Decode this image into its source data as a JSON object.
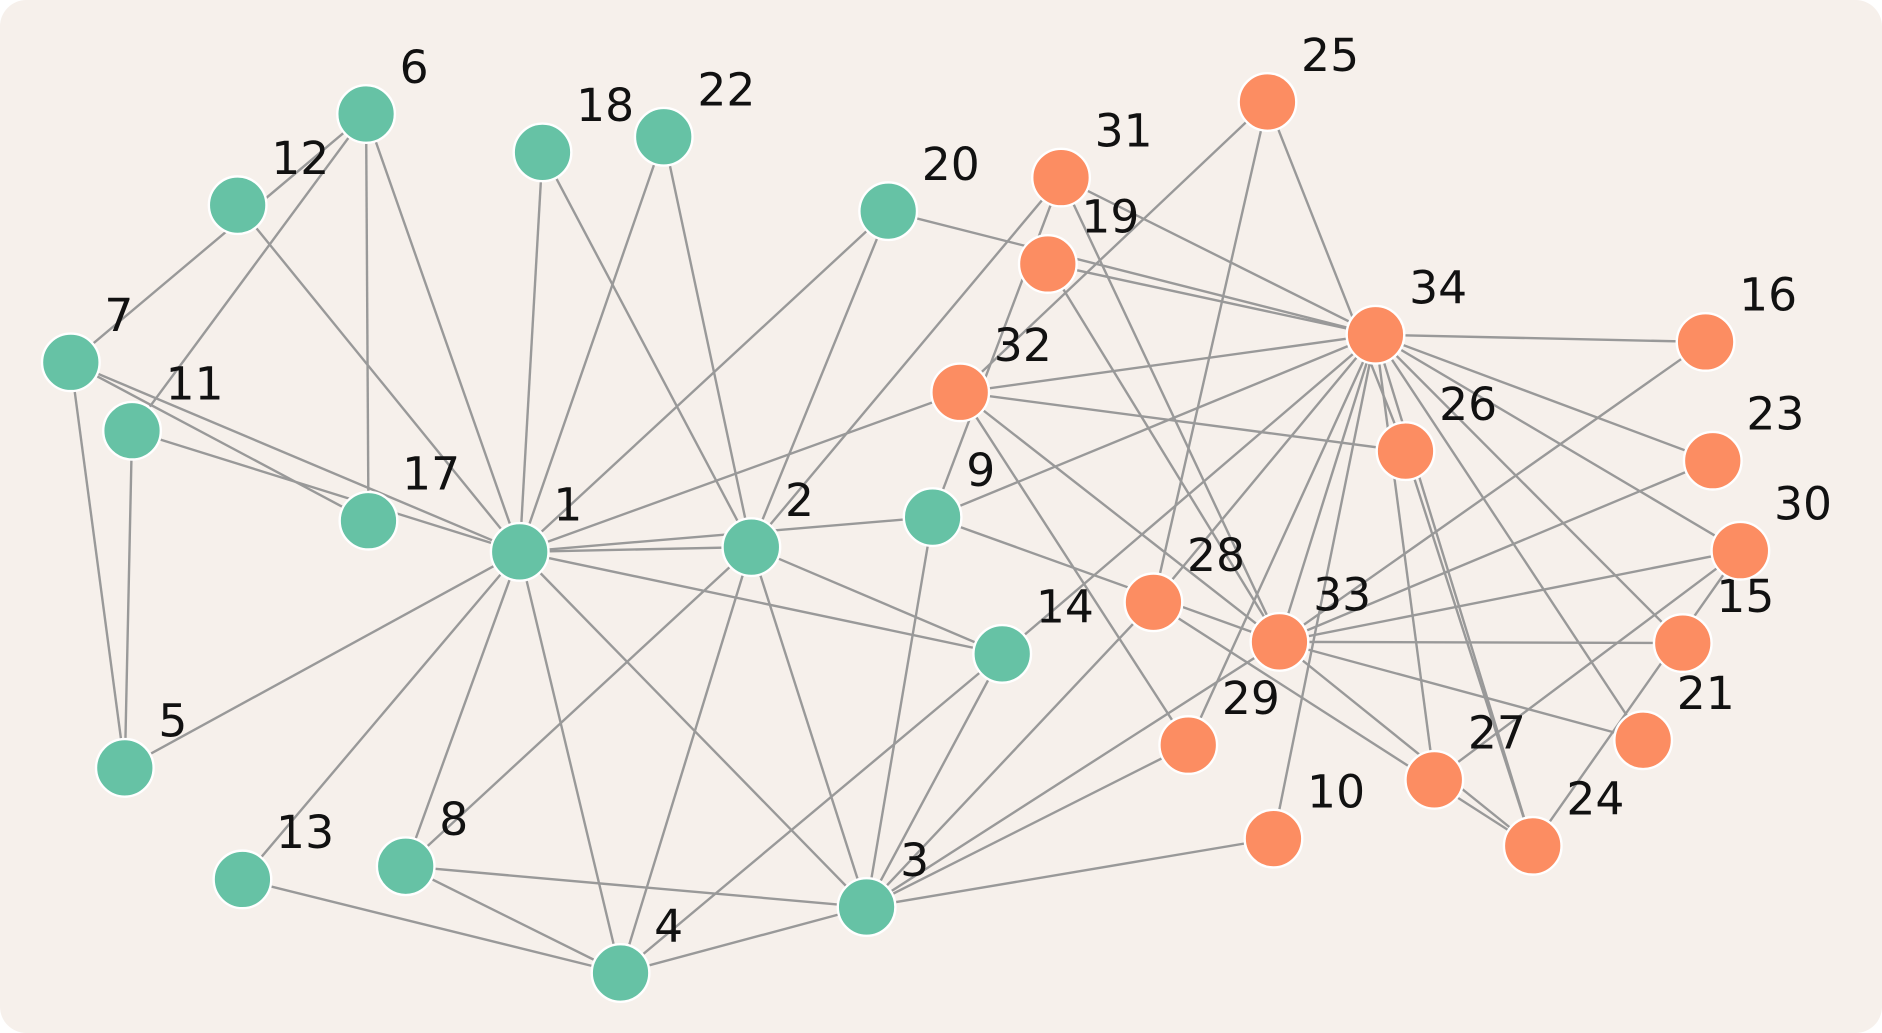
{
  "colors": {
    "background": "#f6f0eb",
    "edge": "#999999",
    "node_stroke": "#ffffff",
    "group_a": "#66c2a5",
    "group_b": "#fc8d62"
  },
  "nodes": [
    {
      "id": "1",
      "group": "a"
    },
    {
      "id": "2",
      "group": "a"
    },
    {
      "id": "3",
      "group": "a"
    },
    {
      "id": "4",
      "group": "a"
    },
    {
      "id": "5",
      "group": "a"
    },
    {
      "id": "6",
      "group": "a"
    },
    {
      "id": "7",
      "group": "a"
    },
    {
      "id": "8",
      "group": "a"
    },
    {
      "id": "9",
      "group": "a"
    },
    {
      "id": "10",
      "group": "b"
    },
    {
      "id": "11",
      "group": "a"
    },
    {
      "id": "12",
      "group": "a"
    },
    {
      "id": "13",
      "group": "a"
    },
    {
      "id": "14",
      "group": "a"
    },
    {
      "id": "15",
      "group": "b"
    },
    {
      "id": "16",
      "group": "b"
    },
    {
      "id": "17",
      "group": "a"
    },
    {
      "id": "18",
      "group": "a"
    },
    {
      "id": "19",
      "group": "b"
    },
    {
      "id": "20",
      "group": "a"
    },
    {
      "id": "21",
      "group": "b"
    },
    {
      "id": "22",
      "group": "a"
    },
    {
      "id": "23",
      "group": "b"
    },
    {
      "id": "24",
      "group": "b"
    },
    {
      "id": "25",
      "group": "b"
    },
    {
      "id": "26",
      "group": "b"
    },
    {
      "id": "27",
      "group": "b"
    },
    {
      "id": "28",
      "group": "b"
    },
    {
      "id": "29",
      "group": "b"
    },
    {
      "id": "30",
      "group": "b"
    },
    {
      "id": "31",
      "group": "b"
    },
    {
      "id": "32",
      "group": "b"
    },
    {
      "id": "33",
      "group": "b"
    },
    {
      "id": "34",
      "group": "b"
    }
  ],
  "edges": [
    [
      "1",
      "2"
    ],
    [
      "1",
      "3"
    ],
    [
      "1",
      "4"
    ],
    [
      "1",
      "5"
    ],
    [
      "1",
      "6"
    ],
    [
      "1",
      "7"
    ],
    [
      "1",
      "8"
    ],
    [
      "1",
      "9"
    ],
    [
      "1",
      "11"
    ],
    [
      "1",
      "12"
    ],
    [
      "1",
      "13"
    ],
    [
      "1",
      "14"
    ],
    [
      "1",
      "18"
    ],
    [
      "1",
      "20"
    ],
    [
      "1",
      "22"
    ],
    [
      "1",
      "32"
    ],
    [
      "2",
      "3"
    ],
    [
      "2",
      "4"
    ],
    [
      "2",
      "8"
    ],
    [
      "2",
      "14"
    ],
    [
      "2",
      "18"
    ],
    [
      "2",
      "20"
    ],
    [
      "2",
      "22"
    ],
    [
      "2",
      "31"
    ],
    [
      "3",
      "4"
    ],
    [
      "3",
      "8"
    ],
    [
      "3",
      "9"
    ],
    [
      "3",
      "10"
    ],
    [
      "3",
      "14"
    ],
    [
      "3",
      "28"
    ],
    [
      "3",
      "29"
    ],
    [
      "3",
      "33"
    ],
    [
      "4",
      "8"
    ],
    [
      "4",
      "13"
    ],
    [
      "4",
      "14"
    ],
    [
      "5",
      "7"
    ],
    [
      "5",
      "11"
    ],
    [
      "6",
      "7"
    ],
    [
      "6",
      "11"
    ],
    [
      "6",
      "17"
    ],
    [
      "7",
      "17"
    ],
    [
      "9",
      "31"
    ],
    [
      "9",
      "33"
    ],
    [
      "9",
      "34"
    ],
    [
      "10",
      "34"
    ],
    [
      "14",
      "34"
    ],
    [
      "15",
      "33"
    ],
    [
      "15",
      "34"
    ],
    [
      "16",
      "33"
    ],
    [
      "16",
      "34"
    ],
    [
      "19",
      "33"
    ],
    [
      "19",
      "34"
    ],
    [
      "20",
      "34"
    ],
    [
      "21",
      "33"
    ],
    [
      "21",
      "34"
    ],
    [
      "23",
      "33"
    ],
    [
      "23",
      "34"
    ],
    [
      "24",
      "26"
    ],
    [
      "24",
      "28"
    ],
    [
      "24",
      "30"
    ],
    [
      "24",
      "33"
    ],
    [
      "24",
      "34"
    ],
    [
      "25",
      "26"
    ],
    [
      "25",
      "28"
    ],
    [
      "25",
      "32"
    ],
    [
      "26",
      "32"
    ],
    [
      "27",
      "30"
    ],
    [
      "27",
      "34"
    ],
    [
      "28",
      "34"
    ],
    [
      "29",
      "32"
    ],
    [
      "29",
      "34"
    ],
    [
      "30",
      "33"
    ],
    [
      "30",
      "34"
    ],
    [
      "31",
      "33"
    ],
    [
      "31",
      "34"
    ],
    [
      "32",
      "33"
    ],
    [
      "32",
      "34"
    ],
    [
      "33",
      "34"
    ]
  ]
}
